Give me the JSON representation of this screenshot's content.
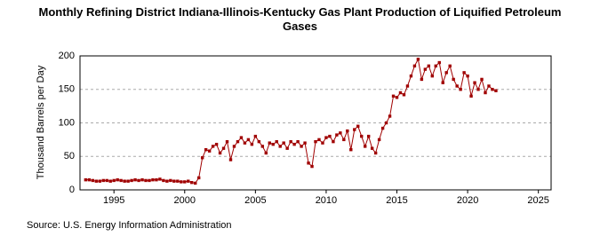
{
  "chart_data": {
    "type": "line",
    "title": "Monthly Refining District Indiana-Illinois-Kentucky Gas Plant Production of Liquified Petroleum Gases",
    "y_label": "Thousand Barrels per Day",
    "source": "Source: U.S. Energy Information Administration",
    "color": "#a00000",
    "grid": true,
    "xlim": [
      1992.6,
      2025.9
    ],
    "ylim": [
      0,
      200
    ],
    "xticks": [
      1995,
      2000,
      2005,
      2010,
      2015,
      2020,
      2025
    ],
    "yticks": [
      0,
      50,
      100,
      150,
      200
    ],
    "x": [
      1993,
      1993.25,
      1993.5,
      1993.75,
      1994,
      1994.25,
      1994.5,
      1994.75,
      1995,
      1995.25,
      1995.5,
      1995.75,
      1996,
      1996.25,
      1996.5,
      1996.75,
      1997,
      1997.25,
      1997.5,
      1997.75,
      1998,
      1998.25,
      1998.5,
      1998.75,
      1999,
      1999.25,
      1999.5,
      1999.75,
      2000,
      2000.25,
      2000.5,
      2000.75,
      2001,
      2001.25,
      2001.5,
      2001.75,
      2002,
      2002.25,
      2002.5,
      2002.75,
      2003,
      2003.25,
      2003.5,
      2003.75,
      2004,
      2004.25,
      2004.5,
      2004.75,
      2005,
      2005.25,
      2005.5,
      2005.75,
      2006,
      2006.25,
      2006.5,
      2006.75,
      2007,
      2007.25,
      2007.5,
      2007.75,
      2008,
      2008.25,
      2008.5,
      2008.75,
      2009,
      2009.25,
      2009.5,
      2009.75,
      2010,
      2010.25,
      2010.5,
      2010.75,
      2011,
      2011.25,
      2011.5,
      2011.75,
      2012,
      2012.25,
      2012.5,
      2012.75,
      2013,
      2013.25,
      2013.5,
      2013.75,
      2014,
      2014.25,
      2014.5,
      2014.75,
      2015,
      2015.25,
      2015.5,
      2015.75,
      2016,
      2016.25,
      2016.5,
      2016.75,
      2017,
      2017.25,
      2017.5,
      2017.75,
      2018,
      2018.25,
      2018.5,
      2018.75,
      2019,
      2019.25,
      2019.5,
      2019.75,
      2020,
      2020.25,
      2020.5,
      2020.75,
      2021,
      2021.25,
      2021.5,
      2021.75,
      2022
    ],
    "values": [
      15,
      15,
      14,
      13,
      13,
      14,
      14,
      13,
      14,
      15,
      14,
      13,
      13,
      14,
      15,
      14,
      15,
      14,
      14,
      15,
      15,
      16,
      14,
      13,
      14,
      13,
      13,
      12,
      12,
      13,
      11,
      10,
      18,
      48,
      60,
      58,
      65,
      68,
      55,
      62,
      72,
      45,
      65,
      72,
      78,
      70,
      75,
      68,
      80,
      72,
      65,
      55,
      70,
      68,
      72,
      65,
      70,
      62,
      72,
      68,
      72,
      65,
      70,
      40,
      35,
      72,
      75,
      70,
      78,
      80,
      72,
      82,
      85,
      75,
      88,
      60,
      90,
      95,
      80,
      65,
      80,
      62,
      55,
      75,
      92,
      100,
      110,
      140,
      138,
      145,
      142,
      155,
      170,
      185,
      195,
      165,
      180,
      185,
      170,
      185,
      190,
      160,
      175,
      185,
      165,
      155,
      150,
      175,
      170,
      140,
      160,
      150,
      165,
      145,
      155,
      150,
      148
    ]
  }
}
